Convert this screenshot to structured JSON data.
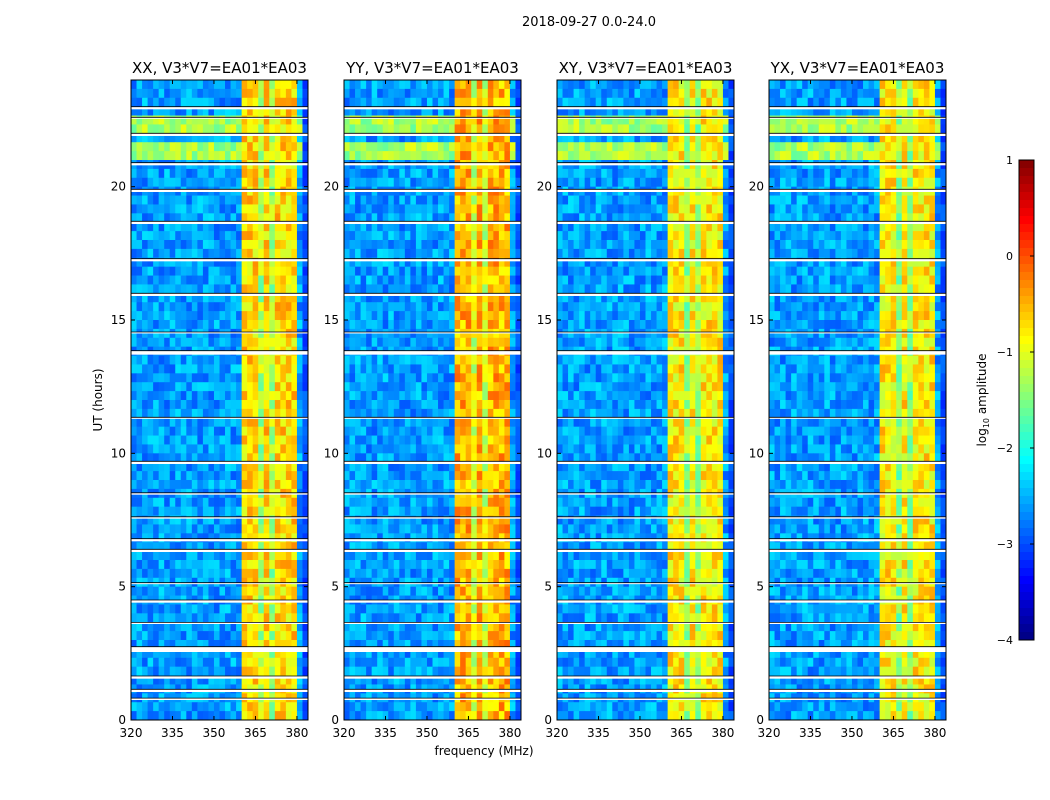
{
  "chart_data": {
    "type": "heatmap",
    "suptitle": "2018-09-27 0.0-24.0",
    "xlabel": "frequency (MHz)",
    "ylabel": "UT (hours)",
    "xlim": [
      320,
      384
    ],
    "ylim": [
      0,
      24
    ],
    "xticks": [
      "320",
      "335",
      "350",
      "365",
      "380"
    ],
    "xtick_values": [
      320,
      335,
      350,
      365,
      380
    ],
    "yticks": [
      "0",
      "5",
      "10",
      "15",
      "20"
    ],
    "ytick_values": [
      0,
      5,
      10,
      15,
      20
    ],
    "panels": [
      {
        "title": "XX, V3*V7=EA01*EA03",
        "band_level": -0.7,
        "show_ylabel": true
      },
      {
        "title": "YY, V3*V7=EA01*EA03",
        "band_level": -0.5,
        "show_ylabel": false
      },
      {
        "title": "XY, V3*V7=EA01*EA03",
        "band_level": -0.8,
        "show_ylabel": false
      },
      {
        "title": "YX, V3*V7=EA01*EA03",
        "band_level": -0.8,
        "show_ylabel": false
      }
    ],
    "background_level": -2.6,
    "bright_band_mhz": [
      360.5,
      380
    ],
    "band_gaps_mhz": [
      [
        366,
        367
      ],
      [
        371,
        372
      ],
      [
        375.5,
        376.5
      ]
    ],
    "high_background_ut": [
      [
        21.0,
        21.8
      ],
      [
        22.0,
        22.5
      ]
    ],
    "flagged_ut": [
      [
        0.75,
        0.82
      ],
      [
        1.05,
        1.15
      ],
      [
        1.55,
        1.65
      ],
      [
        2.55,
        2.75
      ],
      [
        3.6,
        3.66
      ],
      [
        4.4,
        4.5
      ],
      [
        5.1,
        5.15
      ],
      [
        6.3,
        6.4
      ],
      [
        6.7,
        6.8
      ],
      [
        7.55,
        7.62
      ],
      [
        8.45,
        8.52
      ],
      [
        9.6,
        9.7
      ],
      [
        11.3,
        11.35
      ],
      [
        13.7,
        13.85
      ],
      [
        14.5,
        14.55
      ],
      [
        15.9,
        16.0
      ],
      [
        17.2,
        17.3
      ],
      [
        18.6,
        18.7
      ],
      [
        19.8,
        19.9
      ],
      [
        20.8,
        20.9
      ],
      [
        21.9,
        22.0
      ],
      [
        22.55,
        22.6
      ],
      [
        22.9,
        23.0
      ]
    ],
    "colorbar": {
      "label": "log10 amplitude",
      "label_main": "log",
      "label_sub": "10",
      "label_rest": " amplitude",
      "range": [
        -4,
        1
      ],
      "ticks": [
        "1",
        "0",
        "−1",
        "−2",
        "−3",
        "−4"
      ],
      "tick_values": [
        1,
        0,
        -1,
        -2,
        -3,
        -4
      ],
      "colormap": "jet"
    }
  }
}
